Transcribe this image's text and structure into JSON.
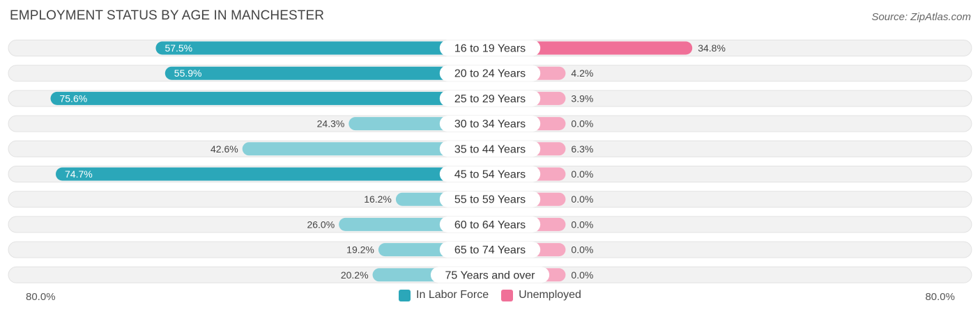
{
  "header": {
    "title": "EMPLOYMENT STATUS BY AGE IN MANCHESTER",
    "source": "Source: ZipAtlas.com"
  },
  "colors": {
    "labor_strong": "#2ba7b9",
    "labor_light": "#87cfd8",
    "unemp_strong": "#f07098",
    "unemp_light": "#f6a8c1",
    "row_bg": "#f2f2f2",
    "row_border": "#e2e2e2"
  },
  "legend": {
    "labor_label": "In Labor Force",
    "unemp_label": "Unemployed"
  },
  "axis": {
    "left_label": "80.0%",
    "right_label": "80.0%"
  },
  "chart_data": {
    "type": "bar",
    "orientation": "horizontal-diverging",
    "title": "EMPLOYMENT STATUS BY AGE IN MANCHESTER",
    "categories": [
      "16 to 19 Years",
      "20 to 24 Years",
      "25 to 29 Years",
      "30 to 34 Years",
      "35 to 44 Years",
      "45 to 54 Years",
      "55 to 59 Years",
      "60 to 64 Years",
      "65 to 74 Years",
      "75 Years and over"
    ],
    "series": [
      {
        "name": "In Labor Force",
        "values": [
          57.5,
          55.9,
          75.6,
          24.3,
          42.6,
          74.7,
          16.2,
          26.0,
          19.2,
          20.2
        ],
        "labels": [
          "57.5%",
          "55.9%",
          "75.6%",
          "24.3%",
          "42.6%",
          "74.7%",
          "16.2%",
          "26.0%",
          "19.2%",
          "20.2%"
        ]
      },
      {
        "name": "Unemployed",
        "values": [
          34.8,
          4.2,
          3.9,
          0.0,
          6.3,
          0.0,
          0.0,
          0.0,
          0.0,
          0.0
        ],
        "labels": [
          "34.8%",
          "4.2%",
          "3.9%",
          "0.0%",
          "6.3%",
          "0.0%",
          "0.0%",
          "0.0%",
          "0.0%",
          "0.0%"
        ]
      }
    ],
    "xlim": [
      -80,
      80
    ],
    "legend_position": "bottom-center"
  }
}
